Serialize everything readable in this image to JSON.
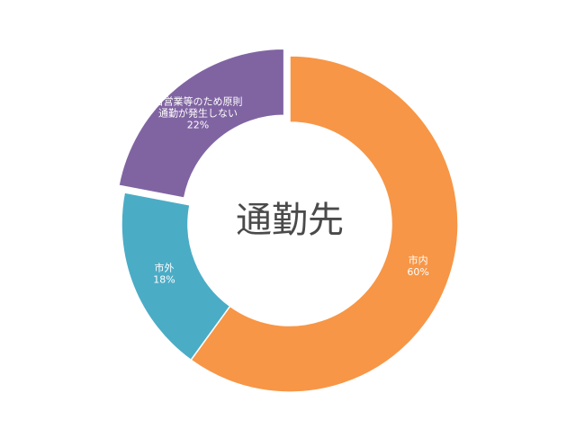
{
  "chart_data": {
    "type": "pie",
    "style": "donut",
    "title": "通勤先",
    "slices": [
      {
        "label": "市内",
        "value": 60,
        "display": "60%",
        "color": "#f79646"
      },
      {
        "label": "市外",
        "value": 18,
        "display": "18%",
        "color": "#4bacc6"
      },
      {
        "label_lines": [
          "自営業等のため原則",
          "通勤が発生しない"
        ],
        "value": 22,
        "display": "22%",
        "color": "#8064a2",
        "exploded": true
      }
    ]
  }
}
